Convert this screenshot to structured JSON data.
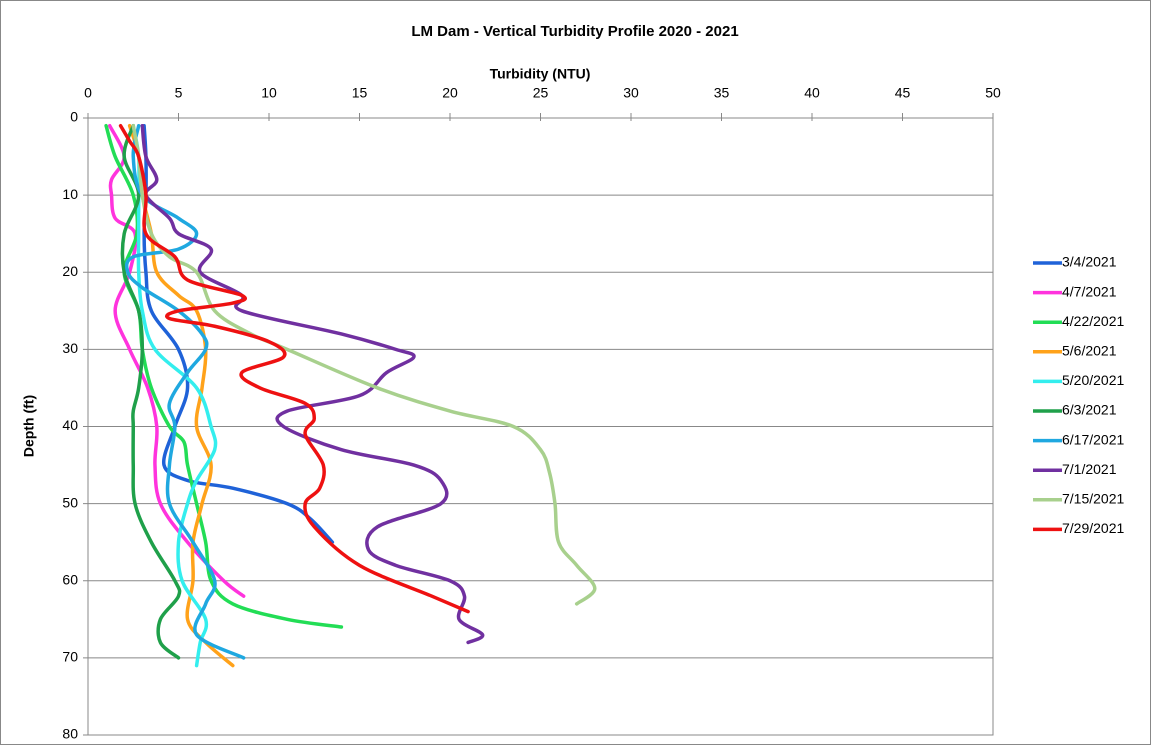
{
  "chart_data": {
    "type": "line",
    "title": "LM Dam - Vertical Turbidity Profile 2020 - 2021",
    "xlabel": "Turbidity (NTU)",
    "ylabel": "Depth (ft)",
    "xlim": [
      0,
      50
    ],
    "xticks": [
      0,
      5,
      10,
      15,
      20,
      25,
      30,
      35,
      40,
      45,
      50
    ],
    "ylim": [
      0,
      80
    ],
    "yticks": [
      0,
      10,
      20,
      30,
      40,
      50,
      60,
      70,
      80
    ],
    "y_inverted": true,
    "grid": true,
    "legend": "right",
    "series": [
      {
        "name": "3/4/2021",
        "color": "#1f62d8",
        "depth": [
          1,
          5,
          10,
          15,
          20,
          25,
          30,
          35,
          40,
          45,
          47,
          48,
          50,
          52,
          55
        ],
        "values": [
          3.1,
          3.2,
          3.2,
          3.1,
          3.2,
          3.5,
          5,
          5.5,
          4.8,
          4.2,
          5.5,
          8,
          11,
          12.3,
          13.5
        ]
      },
      {
        "name": "4/7/2021",
        "color": "#ff33dd",
        "depth": [
          1,
          5,
          8,
          10,
          13,
          15,
          20,
          25,
          30,
          35,
          40,
          45,
          50,
          55,
          60,
          62
        ],
        "values": [
          1.2,
          2,
          1.3,
          1.3,
          1.5,
          2.6,
          2.3,
          1.5,
          2.3,
          3.3,
          3.8,
          3.7,
          4,
          5.5,
          7.5,
          8.6
        ]
      },
      {
        "name": "4/22/2021",
        "color": "#22dd55",
        "depth": [
          1,
          5,
          10,
          15,
          20,
          25,
          30,
          35,
          40,
          42,
          45,
          50,
          55,
          60,
          63,
          65,
          66
        ],
        "values": [
          1,
          1.5,
          2.5,
          2.7,
          2,
          2.8,
          3,
          3.5,
          4.5,
          5.3,
          5.5,
          6,
          6.5,
          6.8,
          8,
          11,
          14
        ]
      },
      {
        "name": "5/6/2021",
        "color": "#ffa21a",
        "depth": [
          1,
          5,
          10,
          15,
          20,
          23,
          25,
          30,
          35,
          40,
          45,
          50,
          55,
          60,
          65,
          68,
          71
        ],
        "values": [
          2.3,
          2.8,
          3,
          3.5,
          3.8,
          5,
          6,
          6.5,
          6.3,
          6,
          6.8,
          6.3,
          5.8,
          5.8,
          5.5,
          6.5,
          8
        ]
      },
      {
        "name": "5/20/2021",
        "color": "#33eeee",
        "depth": [
          1,
          5,
          10,
          15,
          20,
          25,
          30,
          35,
          40,
          43,
          47,
          50,
          55,
          60,
          65,
          68,
          71
        ],
        "values": [
          2.5,
          2.8,
          2.8,
          2.8,
          2.8,
          3,
          3.7,
          6,
          6.8,
          7,
          6,
          5.5,
          5,
          5.2,
          6.5,
          6.2,
          6
        ]
      },
      {
        "name": "6/3/2021",
        "color": "#1fa04a",
        "depth": [
          1,
          5,
          10,
          15,
          20,
          25,
          30,
          35,
          38,
          40,
          45,
          50,
          55,
          60,
          62,
          65,
          68,
          70
        ],
        "values": [
          2.5,
          2,
          2.8,
          2,
          2,
          2.8,
          3,
          2.8,
          2.5,
          2.5,
          2.5,
          2.6,
          3.5,
          4.8,
          5,
          4,
          4,
          5
        ]
      },
      {
        "name": "6/17/2021",
        "color": "#1fa8e0",
        "depth": [
          1,
          5,
          10,
          13,
          15,
          17,
          18,
          20,
          22,
          25,
          28,
          30,
          33,
          37,
          40,
          45,
          50,
          55,
          60,
          63,
          67,
          70
        ],
        "values": [
          2.8,
          2.5,
          3,
          5,
          6,
          5,
          2.5,
          2.2,
          3,
          5,
          6.3,
          6.5,
          5.5,
          4.5,
          4.8,
          4.5,
          4.5,
          5.8,
          7,
          6.5,
          6,
          8.6
        ]
      },
      {
        "name": "7/1/2021",
        "color": "#7030a0",
        "depth": [
          1,
          5,
          8,
          10,
          13,
          15,
          17,
          20,
          23,
          25,
          28,
          30,
          31,
          33,
          36,
          38,
          40,
          43,
          45,
          47,
          50,
          53,
          56,
          58,
          60,
          62,
          65,
          67,
          68
        ],
        "values": [
          3,
          3.2,
          3.8,
          3.2,
          4.5,
          5,
          6.8,
          6.2,
          8.5,
          8.5,
          14,
          17,
          18,
          16.5,
          15,
          11,
          10.8,
          14,
          18,
          19.5,
          19.5,
          16,
          15.5,
          17,
          20,
          20.8,
          20.5,
          21.8,
          21
        ]
      },
      {
        "name": "7/15/2021",
        "color": "#a8d08d",
        "depth": [
          1,
          5,
          10,
          15,
          18,
          20,
          25,
          28,
          30,
          35,
          38,
          40,
          43,
          46,
          50,
          55,
          58,
          61,
          63
        ],
        "values": [
          2.5,
          2.8,
          3,
          3.5,
          4.5,
          6,
          7,
          9,
          11,
          16,
          20,
          23.5,
          25,
          25.5,
          25.8,
          26,
          27,
          28,
          27
        ]
      },
      {
        "name": "7/29/2021",
        "color": "#ee1111",
        "depth": [
          1,
          3,
          5,
          10,
          15,
          18,
          21,
          23,
          24,
          25,
          26,
          27,
          29,
          31,
          33,
          35,
          37,
          39,
          41,
          45,
          48,
          50,
          53,
          58,
          62,
          64
        ],
        "values": [
          1.8,
          2.3,
          2.8,
          3.2,
          3.2,
          4.8,
          5.5,
          8.5,
          8,
          5,
          4.5,
          7,
          10,
          10.8,
          8.5,
          9.5,
          12,
          12.5,
          12,
          13,
          12.8,
          12,
          12.5,
          15,
          19,
          21
        ]
      }
    ]
  }
}
